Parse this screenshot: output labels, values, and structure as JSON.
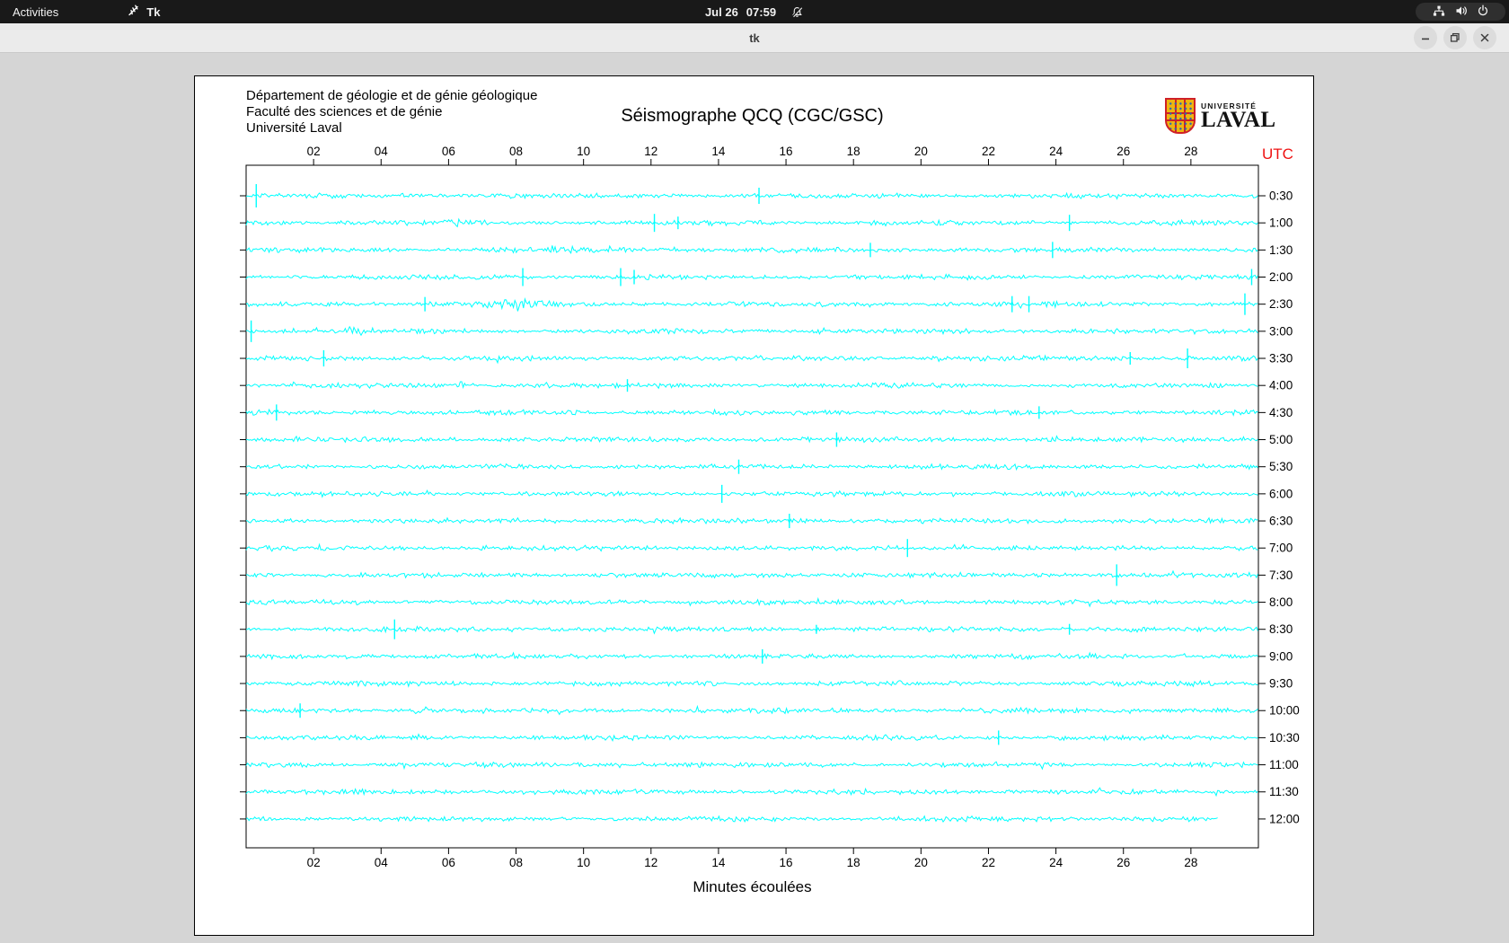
{
  "top_bar": {
    "activities_label": "Activities",
    "app_label": "Tk",
    "clock_date": "Jul 26",
    "clock_time": "07:59"
  },
  "window": {
    "title_label": "tk"
  },
  "header": {
    "lines": [
      "Département de géologie et de génie géologique",
      "Faculté des sciences et de génie",
      "Université Laval"
    ]
  },
  "logo": {
    "small": "UNIVERSITÉ",
    "big": "LAVAL",
    "crest_red": "#cf2027",
    "crest_gold": "#eeb60f",
    "crest_blue": "#2e66b0"
  },
  "chart_data": {
    "type": "line",
    "subtype": "seismogram-helicorder",
    "title": "Séismographe QCQ (CGC/GSC)",
    "xlabel": "Minutes écoulées",
    "right_axis_label": "UTC",
    "right_axis_color": "#ee1111",
    "trace_color": "#00ffff",
    "axis_color": "#000000",
    "xlim": [
      0,
      30
    ],
    "x_tick_minutes": [
      2,
      4,
      6,
      8,
      10,
      12,
      14,
      16,
      18,
      20,
      22,
      24,
      26,
      28
    ],
    "x_tick_labels": [
      "02",
      "04",
      "06",
      "08",
      "10",
      "12",
      "14",
      "16",
      "18",
      "20",
      "22",
      "24",
      "26",
      "28"
    ],
    "minutes_per_row": 30,
    "traces": [
      {
        "label": "0:30",
        "events": [
          {
            "t": "spike",
            "m": 0.3,
            "h": 13
          },
          {
            "t": "spike",
            "m": 15.2,
            "h": 9
          }
        ]
      },
      {
        "label": "1:00",
        "events": [
          {
            "t": "burst",
            "m": 6.3,
            "w": 1.2,
            "k": 2.2
          },
          {
            "t": "spike",
            "m": 12.1,
            "h": 10
          },
          {
            "t": "spike",
            "m": 12.8,
            "h": 7
          },
          {
            "t": "spike",
            "m": 24.4,
            "h": 9
          }
        ]
      },
      {
        "label": "1:30",
        "events": [
          {
            "t": "burst",
            "m": 9.3,
            "w": 1.0,
            "k": 2.4
          },
          {
            "t": "spike",
            "m": 18.5,
            "h": 8
          },
          {
            "t": "spike",
            "m": 23.9,
            "h": 9
          }
        ]
      },
      {
        "label": "2:00",
        "events": [
          {
            "t": "spike",
            "m": 8.2,
            "h": 10
          },
          {
            "t": "spike",
            "m": 11.1,
            "h": 10
          },
          {
            "t": "spike",
            "m": 11.5,
            "h": 8
          },
          {
            "t": "spike",
            "m": 29.8,
            "h": 9
          }
        ]
      },
      {
        "label": "2:30",
        "events": [
          {
            "t": "spike",
            "m": 5.3,
            "h": 8
          },
          {
            "t": "burst",
            "m": 8.0,
            "w": 2.6,
            "k": 2.8
          },
          {
            "t": "spike",
            "m": 22.7,
            "h": 9
          },
          {
            "t": "spike",
            "m": 23.2,
            "h": 9
          },
          {
            "t": "spike",
            "m": 29.6,
            "h": 12
          }
        ]
      },
      {
        "label": "3:00",
        "events": [
          {
            "t": "spike",
            "m": 0.15,
            "h": 12
          },
          {
            "t": "burst",
            "m": 3.2,
            "w": 0.7,
            "k": 2.2
          },
          {
            "t": "burst",
            "m": 17.0,
            "w": 0.9,
            "k": 2.0
          }
        ]
      },
      {
        "label": "3:30",
        "events": [
          {
            "t": "spike",
            "m": 2.3,
            "h": 9
          },
          {
            "t": "spike",
            "m": 26.2,
            "h": 7
          },
          {
            "t": "spike",
            "m": 27.9,
            "h": 11
          }
        ]
      },
      {
        "label": "4:00",
        "events": [
          {
            "t": "burst",
            "m": 9.0,
            "w": 0.8,
            "k": 2.2
          },
          {
            "t": "spike",
            "m": 11.3,
            "h": 7
          }
        ]
      },
      {
        "label": "4:30",
        "events": [
          {
            "t": "spike",
            "m": 0.9,
            "h": 9
          },
          {
            "t": "spike",
            "m": 23.5,
            "h": 7
          }
        ]
      },
      {
        "label": "5:00",
        "events": [
          {
            "t": "spike",
            "m": 17.5,
            "h": 8
          }
        ]
      },
      {
        "label": "5:30",
        "events": [
          {
            "t": "spike",
            "m": 14.6,
            "h": 8
          }
        ]
      },
      {
        "label": "6:00",
        "events": [
          {
            "t": "spike",
            "m": 14.1,
            "h": 10
          }
        ]
      },
      {
        "label": "6:30",
        "events": [
          {
            "t": "spike",
            "m": 16.1,
            "h": 8
          }
        ]
      },
      {
        "label": "7:00",
        "events": [
          {
            "t": "spike",
            "m": 19.6,
            "h": 10
          }
        ]
      },
      {
        "label": "7:30",
        "events": [
          {
            "t": "spike",
            "m": 25.8,
            "h": 12
          }
        ]
      },
      {
        "label": "8:00",
        "events": []
      },
      {
        "label": "8:30",
        "events": [
          {
            "t": "spike",
            "m": 4.4,
            "h": 11
          },
          {
            "t": "spike",
            "m": 16.9,
            "h": 5
          },
          {
            "t": "spike",
            "m": 24.4,
            "h": 6
          }
        ]
      },
      {
        "label": "9:00",
        "events": [
          {
            "t": "spike",
            "m": 15.3,
            "h": 8
          }
        ]
      },
      {
        "label": "9:30",
        "events": []
      },
      {
        "label": "10:00",
        "events": [
          {
            "t": "spike",
            "m": 1.6,
            "h": 8
          }
        ]
      },
      {
        "label": "10:30",
        "events": [
          {
            "t": "spike",
            "m": 22.3,
            "h": 8
          }
        ]
      },
      {
        "label": "11:00",
        "events": []
      },
      {
        "label": "11:30",
        "events": []
      },
      {
        "label": "12:00",
        "end": 28.8,
        "events": []
      }
    ]
  }
}
